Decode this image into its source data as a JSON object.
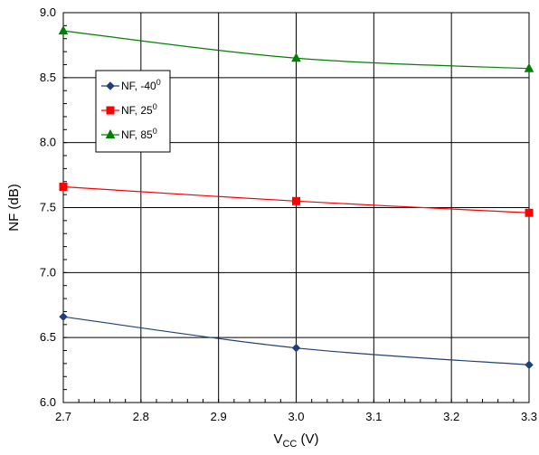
{
  "chart_data": {
    "type": "line",
    "xlabel_main": "V",
    "xlabel_sub": "CC",
    "xlabel_unit": " (V)",
    "ylabel": "NF (dB)",
    "xlim": [
      2.7,
      3.3
    ],
    "ylim": [
      6.0,
      9.0
    ],
    "x_ticks": [
      "2.7",
      "2.8",
      "2.9",
      "3.0",
      "3.1",
      "3.2",
      "3.3"
    ],
    "y_ticks": [
      "6.0",
      "6.5",
      "7.0",
      "7.5",
      "8.0",
      "8.5",
      "9.0"
    ],
    "grid": true,
    "legend_position": "upper-left",
    "series": [
      {
        "name": "NF, -40",
        "degree": "0",
        "color": "#1f3f7a",
        "marker": "diamond",
        "x": [
          2.7,
          3.0,
          3.3
        ],
        "y": [
          6.66,
          6.42,
          6.29
        ]
      },
      {
        "name": "NF, 25",
        "degree": "0",
        "color": "#ff0000",
        "marker": "square",
        "x": [
          2.7,
          3.0,
          3.3
        ],
        "y": [
          7.66,
          7.55,
          7.46
        ]
      },
      {
        "name": "NF, 85",
        "degree": "0",
        "color": "#008000",
        "marker": "triangle",
        "x": [
          2.7,
          3.0,
          3.3
        ],
        "y": [
          8.86,
          8.65,
          8.57
        ]
      }
    ]
  }
}
